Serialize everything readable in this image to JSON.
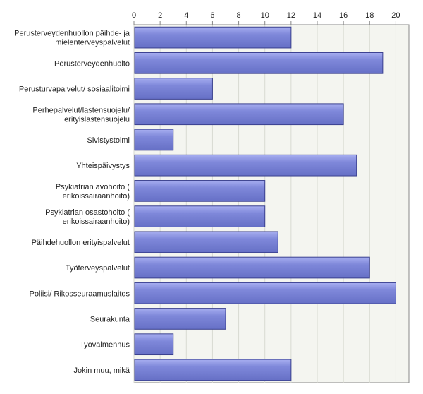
{
  "chart_data": {
    "type": "bar",
    "orientation": "horizontal",
    "categories": [
      [
        "Perusterveydenhuollon päihde- ja",
        "mielenterveyspalvelut"
      ],
      [
        "Perusterveydenhuolto"
      ],
      [
        "Perusturvapalvelut/ sosiaalitoimi"
      ],
      [
        "Perhepalvelut/lastensuojelu/",
        "erityislastensuojelu"
      ],
      [
        "Sivistystoimi"
      ],
      [
        "Yhteispäivystys"
      ],
      [
        "Psykiatrian avohoito (",
        "erikoissairaanhoito)"
      ],
      [
        "Psykiatrian osastohoito (",
        "erikoissairaanhoito)"
      ],
      [
        "Päihdehuollon erityispalvelut"
      ],
      [
        "Työterveyspalvelut"
      ],
      [
        "Poliisi/ Rikosseuraamuslaitos"
      ],
      [
        "Seurakunta"
      ],
      [
        "Työvalmennus"
      ],
      [
        "Jokin muu, mikä"
      ]
    ],
    "values": [
      12,
      19,
      6,
      16,
      3,
      17,
      10,
      10,
      11,
      18,
      20,
      7,
      3,
      12
    ],
    "xlim": [
      0,
      21
    ],
    "xticks": [
      0,
      2,
      4,
      6,
      8,
      10,
      12,
      14,
      16,
      18,
      20
    ],
    "xaxis_position": "top",
    "grid": true,
    "colors": {
      "bar_fill": "#7a83d6",
      "bar_highlight": "#a7aef0",
      "bar_border": "#3a408f",
      "plot_bg": "#f4f5f0",
      "grid": "#d8dad2",
      "axis": "#888888"
    }
  }
}
